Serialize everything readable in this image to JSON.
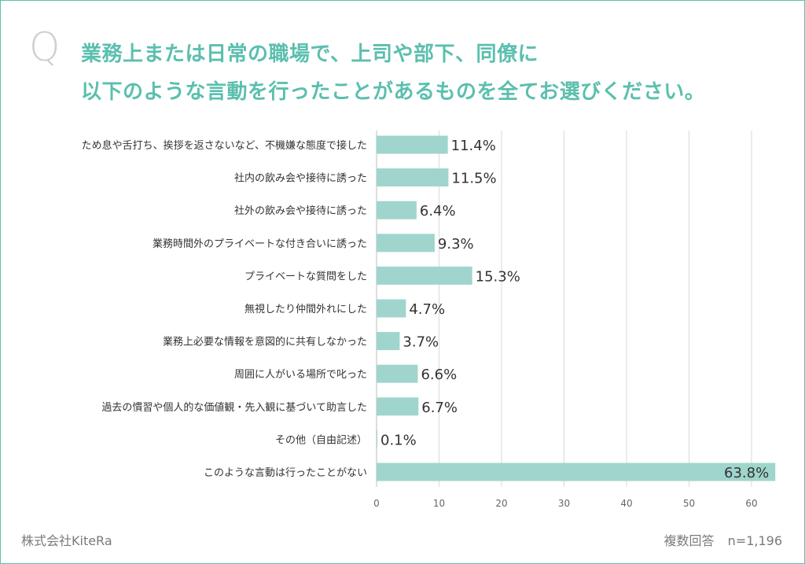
{
  "q_letter": "Q",
  "title_lines": [
    "業務上または日常の職場で、上司や部下、同僚に",
    "以下のような言動を行ったことがあるものを全てお選びください。"
  ],
  "footer": {
    "company": "株式会社KiteRa",
    "answer_type": "複数回答",
    "sample": "n=1,196"
  },
  "colors": {
    "accent": "#5bbfae",
    "bar": "#9fd5cc",
    "grid": "#d9d9d9",
    "text": "#333333"
  },
  "chart_data": {
    "type": "bar",
    "orientation": "horizontal",
    "categories": [
      "ため息や舌打ち、挨拶を返さないなど、不機嫌な態度で接した",
      "社内の飲み会や接待に誘った",
      "社外の飲み会や接待に誘った",
      "業務時間外のプライベートな付き合いに誘った",
      "プライベートな質問をした",
      "無視したり仲間外れにした",
      "業務上必要な情報を意図的に共有しなかった",
      "周囲に人がいる場所で叱った",
      "過去の慣習や個人的な価値観・先入観に基づいて助言した",
      "その他（自由記述）",
      "このような言動は行ったことがない"
    ],
    "values": [
      11.4,
      11.5,
      6.4,
      9.3,
      15.3,
      4.7,
      3.7,
      6.6,
      6.7,
      0.1,
      63.8
    ],
    "value_labels": [
      "11.4%",
      "11.5%",
      "6.4%",
      "9.3%",
      "15.3%",
      "4.7%",
      "3.7%",
      "6.6%",
      "6.7%",
      "0.1%",
      "63.8%"
    ],
    "xlim": [
      0,
      64
    ],
    "xticks": [
      "0",
      "10",
      "20",
      "30",
      "40",
      "50",
      "60"
    ],
    "grid": true
  }
}
